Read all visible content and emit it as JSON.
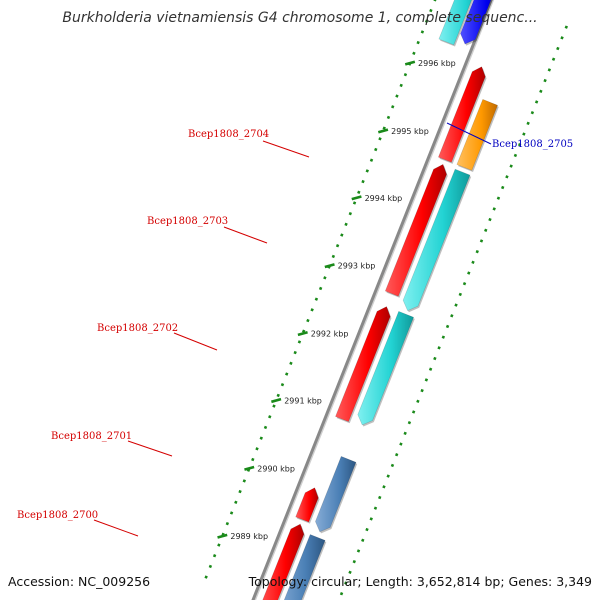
{
  "viewer": {
    "title": "Burkholderia vietnamiensis G4 chromosome 1, complete sequenc...",
    "accession_label": "Accession: NC_009256",
    "summary_label": "Topology: circular; Length: 3,652,814 bp; Genes: 3,349"
  },
  "map": {
    "ticks": [
      {
        "label": "2996 kbp"
      },
      {
        "label": "2995 kbp"
      },
      {
        "label": "2994 kbp"
      },
      {
        "label": "2993 kbp"
      },
      {
        "label": "2992 kbp"
      },
      {
        "label": "2991 kbp"
      },
      {
        "label": "2990 kbp"
      },
      {
        "label": "2989 kbp"
      }
    ],
    "gene_labels": [
      {
        "label": "Bcep1808_2704",
        "color": "#d40000"
      },
      {
        "label": "Bcep1808_2703",
        "color": "#d40000"
      },
      {
        "label": "Bcep1808_2702",
        "color": "#d40000"
      },
      {
        "label": "Bcep1808_2701",
        "color": "#d40000"
      },
      {
        "label": "Bcep1808_2700",
        "color": "#d40000"
      },
      {
        "label": "Bcep1808_2705",
        "color": "#0000c0"
      }
    ],
    "colors": {
      "cds_red": "#ff0000",
      "cds_cyan": "#22d3d3",
      "cds_blue": "#0000ee",
      "cds_orange": "#ff9900",
      "cds_steel": "#4a7fb5",
      "cds_gray": "#c4c4c4",
      "backbone": "#888888",
      "tick_green": "#1a8a1a"
    }
  }
}
